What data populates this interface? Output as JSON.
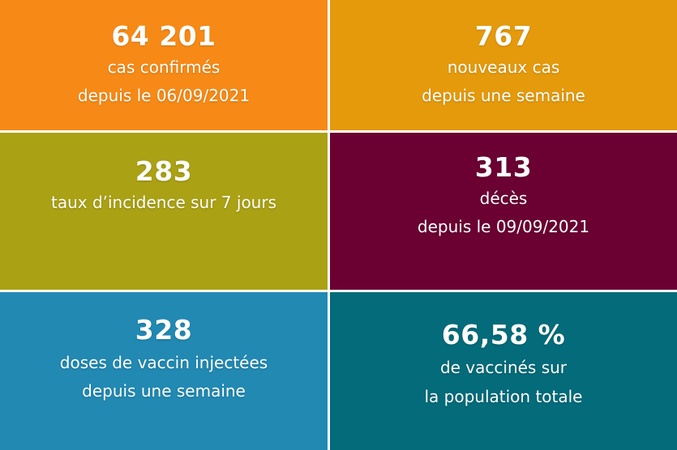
{
  "tiles": [
    {
      "id": "cases",
      "color": "#f78a16",
      "value": "64 201",
      "lines": [
        "cas confirmés",
        "depuis le 06/09/2021"
      ]
    },
    {
      "id": "new-cases",
      "color": "#e59a0c",
      "value": "767",
      "lines": [
        "nouveaux cas",
        "depuis une semaine"
      ]
    },
    {
      "id": "incidence",
      "color": "#aaa114",
      "value": "283",
      "lines": [
        "taux d’incidence sur 7 jours"
      ]
    },
    {
      "id": "deaths",
      "color": "#6b0032",
      "value": "313",
      "lines": [
        "décès",
        "depuis le 09/09/2021"
      ]
    },
    {
      "id": "doses",
      "color": "#2189b2",
      "value": "328",
      "lines": [
        "doses de vaccin injectées",
        "depuis une semaine"
      ]
    },
    {
      "id": "vaccinated",
      "color": "#036b7a",
      "value": "66,58 %",
      "lines": [
        "de vaccinés sur",
        "la population totale"
      ]
    }
  ]
}
